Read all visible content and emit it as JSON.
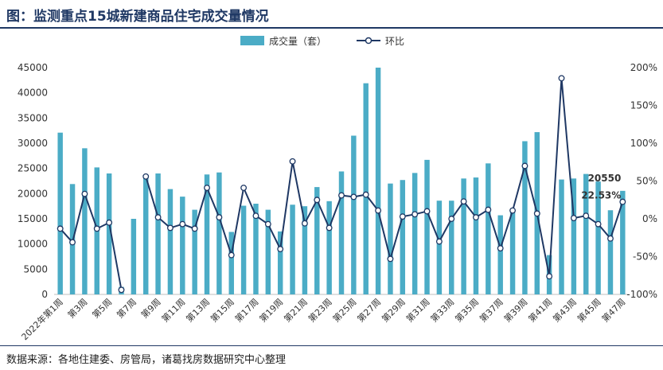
{
  "title": "图：监测重点15城新建商品住宅成交量情况",
  "source": "数据来源：各地住建委、房管局，诸葛找房数据研究中心整理",
  "colors": {
    "bar": "#4bacc6",
    "line": "#1f3864",
    "title": "#1f3864"
  },
  "chart_data": {
    "type": "bar",
    "title": "图：监测重点15城新建商品住宅成交量情况",
    "legend": {
      "position": "top-center",
      "bar_label": "成交量（套）",
      "line_label": "环比"
    },
    "y_left": {
      "min": 0,
      "max": 45000,
      "ticks": [
        "0",
        "5000",
        "10000",
        "15000",
        "20000",
        "25000",
        "30000",
        "35000",
        "40000",
        "45000"
      ]
    },
    "y_right": {
      "min": -100,
      "max": 200,
      "ticks": [
        "-100%",
        "-50%",
        "0%",
        "50%",
        "100%",
        "150%",
        "200%"
      ]
    },
    "x_tick_labels": [
      "2022年第1周",
      "第3周",
      "第5周",
      "第7周",
      "第9周",
      "第11周",
      "第13周",
      "第15周",
      "第17周",
      "第19周",
      "第21周",
      "第23周",
      "第25周",
      "第27周",
      "第29周",
      "第31周",
      "第33周",
      "第35周",
      "第37周",
      "第39周",
      "第41周",
      "第43周",
      "第45周",
      "第47周"
    ],
    "x_tick_indices": [
      0,
      2,
      4,
      6,
      8,
      10,
      12,
      14,
      16,
      18,
      20,
      22,
      24,
      26,
      28,
      30,
      32,
      34,
      36,
      38,
      40,
      42,
      44,
      46
    ],
    "series": [
      {
        "name": "成交量（套）",
        "kind": "bar",
        "values": [
          32100,
          21900,
          29000,
          25200,
          24000,
          1500,
          15000,
          23500,
          24000,
          20900,
          19400,
          16800,
          23800,
          24200,
          12400,
          17600,
          18000,
          16800,
          12500,
          17800,
          17500,
          21300,
          18500,
          24400,
          31500,
          41900,
          45000,
          22000,
          22700,
          24100,
          26700,
          18600,
          18600,
          23000,
          23200,
          26000,
          15700,
          16400,
          30400,
          32200,
          7800,
          22800,
          23000,
          23900,
          22400,
          16700,
          20550
        ]
      },
      {
        "name": "环比",
        "kind": "line",
        "values": [
          -13,
          -31,
          33,
          -13,
          -5,
          -94,
          null,
          56,
          2,
          -12,
          -7,
          -13,
          41,
          2,
          -48,
          41,
          4,
          -7,
          -40,
          76,
          -6,
          25,
          -12,
          31,
          29,
          32,
          11,
          -53,
          3,
          6,
          10,
          -30,
          0,
          23,
          2,
          12,
          -39,
          11,
          70,
          7,
          -76,
          186,
          1,
          4,
          -7,
          -26,
          22.53
        ]
      }
    ],
    "annotations": [
      {
        "series": "成交量（套）",
        "index": 46,
        "text": "20550"
      },
      {
        "series": "环比",
        "index": 46,
        "text": "22.53%"
      }
    ]
  }
}
